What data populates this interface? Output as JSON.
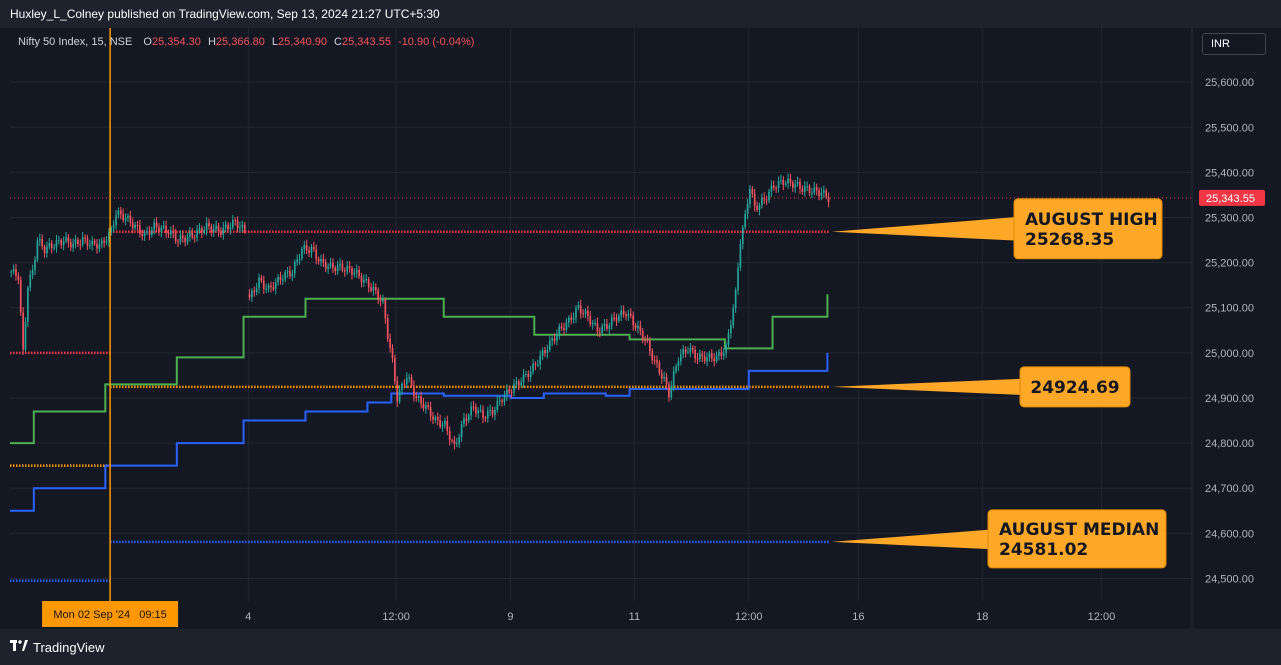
{
  "publisher": "Huxley_L_Colney published on TradingView.com, Sep 13, 2024 21:27 UTC+5:30",
  "brand": {
    "logo_icon": "tradingview-logo-icon",
    "label": "TradingView"
  },
  "legend": {
    "symbol": "Nifty 50 Index, 15, NSE",
    "open_label": "O",
    "open": "25,354.30",
    "high_label": "H",
    "high": "25,366.80",
    "low_label": "L",
    "low": "25,340.90",
    "close_label": "C",
    "close": "25,343.55",
    "change": "-10.90 (-0.04%)"
  },
  "currency": "INR",
  "colors": {
    "up": "#26a69a",
    "down": "#f7525f",
    "green_line": "#4caf50",
    "blue_line": "#2962ff",
    "orange": "#ff9800",
    "red_dotted": "#f23645",
    "callout_bg": "#ffa726"
  },
  "chart_data": {
    "type": "candlestick",
    "symbol": "Nifty 50 Index",
    "interval": "15",
    "exchange": "NSE",
    "y_axis": {
      "min": 24450,
      "max": 25720,
      "ticks": [
        24500,
        24600,
        24700,
        24800,
        24900,
        25000,
        25100,
        25200,
        25300,
        25400,
        25500,
        25600
      ],
      "tick_labels": [
        "24,500.00",
        "24,600.00",
        "24,700.00",
        "24,800.00",
        "24,900.00",
        "25,000.00",
        "25,100.00",
        "25,200.00",
        "25,300.00",
        "25,400.00",
        "25,500.00",
        "25,600.00"
      ]
    },
    "x_axis": {
      "labels": [
        "4",
        "12:00",
        "9",
        "11",
        "12:00",
        "16",
        "18",
        "12:00"
      ],
      "label_bars": [
        100,
        162,
        210,
        262,
        310,
        356,
        408,
        458
      ],
      "bars_total": 496
    },
    "last_price": {
      "value": 25343.55,
      "label": "25,343.55"
    },
    "crosshair": {
      "bar": 42,
      "label": "Mon 02 Sep '24   09:15"
    },
    "price_path": [
      [
        0,
        25180
      ],
      [
        3,
        25170
      ],
      [
        5,
        25000
      ],
      [
        7,
        25150
      ],
      [
        9,
        25180
      ],
      [
        11,
        25250
      ],
      [
        14,
        25230
      ],
      [
        18,
        25240
      ],
      [
        22,
        25250
      ],
      [
        26,
        25240
      ],
      [
        30,
        25250
      ],
      [
        34,
        25240
      ],
      [
        38,
        25240
      ],
      [
        42,
        25270
      ],
      [
        44,
        25310
      ],
      [
        48,
        25300
      ],
      [
        52,
        25280
      ],
      [
        56,
        25260
      ],
      [
        60,
        25280
      ],
      [
        66,
        25270
      ],
      [
        70,
        25250
      ],
      [
        76,
        25260
      ],
      [
        82,
        25280
      ],
      [
        88,
        25270
      ],
      [
        94,
        25290
      ],
      [
        98,
        25270
      ],
      [
        100,
        25120
      ],
      [
        104,
        25160
      ],
      [
        108,
        25140
      ],
      [
        114,
        25170
      ],
      [
        118,
        25180
      ],
      [
        122,
        25230
      ],
      [
        126,
        25230
      ],
      [
        130,
        25200
      ],
      [
        134,
        25190
      ],
      [
        138,
        25190
      ],
      [
        144,
        25180
      ],
      [
        148,
        25160
      ],
      [
        152,
        25140
      ],
      [
        156,
        25110
      ],
      [
        158,
        25040
      ],
      [
        160,
        24980
      ],
      [
        162,
        24900
      ],
      [
        166,
        24950
      ],
      [
        170,
        24900
      ],
      [
        174,
        24880
      ],
      [
        178,
        24850
      ],
      [
        182,
        24840
      ],
      [
        186,
        24790
      ],
      [
        190,
        24850
      ],
      [
        194,
        24880
      ],
      [
        198,
        24860
      ],
      [
        202,
        24870
      ],
      [
        206,
        24900
      ],
      [
        210,
        24920
      ],
      [
        214,
        24940
      ],
      [
        218,
        24960
      ],
      [
        222,
        24990
      ],
      [
        226,
        25020
      ],
      [
        230,
        25050
      ],
      [
        234,
        25070
      ],
      [
        238,
        25100
      ],
      [
        242,
        25080
      ],
      [
        246,
        25050
      ],
      [
        250,
        25060
      ],
      [
        254,
        25080
      ],
      [
        258,
        25090
      ],
      [
        262,
        25060
      ],
      [
        266,
        25030
      ],
      [
        270,
        24980
      ],
      [
        274,
        24940
      ],
      [
        276,
        24910
      ],
      [
        280,
        24990
      ],
      [
        284,
        25010
      ],
      [
        288,
        24990
      ],
      [
        292,
        24990
      ],
      [
        296,
        24990
      ],
      [
        300,
        25010
      ],
      [
        304,
        25130
      ],
      [
        306,
        25250
      ],
      [
        308,
        25300
      ],
      [
        310,
        25370
      ],
      [
        312,
        25320
      ],
      [
        316,
        25340
      ],
      [
        320,
        25370
      ],
      [
        324,
        25380
      ],
      [
        328,
        25375
      ],
      [
        332,
        25365
      ],
      [
        336,
        25360
      ],
      [
        340,
        25355
      ],
      [
        343,
        25343
      ]
    ],
    "series": [
      {
        "name": "",
        "color": "#4caf50",
        "steps": [
          [
            0,
            24800
          ],
          [
            10,
            24870
          ],
          [
            40,
            24930
          ],
          [
            70,
            24990
          ],
          [
            98,
            25080
          ],
          [
            124,
            25120
          ],
          [
            182,
            25080
          ],
          [
            220,
            25040
          ],
          [
            250,
            25040
          ],
          [
            260,
            25030
          ],
          [
            300,
            25010
          ],
          [
            320,
            25080
          ],
          [
            340,
            25080
          ],
          [
            343,
            25130
          ]
        ]
      },
      {
        "name": "",
        "color": "#2962ff",
        "steps": [
          [
            0,
            24650
          ],
          [
            10,
            24700
          ],
          [
            40,
            24750
          ],
          [
            70,
            24800
          ],
          [
            98,
            24850
          ],
          [
            124,
            24870
          ],
          [
            150,
            24890
          ],
          [
            160,
            24910
          ],
          [
            182,
            24905
          ],
          [
            210,
            24900
          ],
          [
            224,
            24910
          ],
          [
            250,
            24905
          ],
          [
            260,
            24920
          ],
          [
            310,
            24960
          ],
          [
            340,
            24960
          ],
          [
            343,
            25000
          ]
        ]
      }
    ],
    "levels": [
      {
        "name": "",
        "value": 25000,
        "color": "#f23645",
        "from_bar": 0,
        "to_bar": 42
      },
      {
        "name": "august-high",
        "value": 25268.35,
        "color": "#f23645",
        "from_bar": 42,
        "to_bar": 344
      },
      {
        "name": "",
        "value": 24924.69,
        "color": "#ff9800",
        "from_bar": 42,
        "to_bar": 344
      },
      {
        "name": "",
        "value": 24750,
        "color": "#ff9800",
        "from_bar": 0,
        "to_bar": 42
      },
      {
        "name": "august-median",
        "value": 24581.02,
        "color": "#2962ff",
        "from_bar": 42,
        "to_bar": 344
      },
      {
        "name": "",
        "value": 24495,
        "color": "#2962ff",
        "from_bar": 0,
        "to_bar": 42
      }
    ],
    "annotations": [
      {
        "name": "august-high-callout",
        "line1": "AUGUST HIGH",
        "line2": "25268.35",
        "anchor_bar": 344,
        "anchor_value": 25268.35
      },
      {
        "name": "level-callout",
        "line1": "24924.69",
        "line2": "",
        "anchor_bar": 344,
        "anchor_value": 24924.69
      },
      {
        "name": "august-median-callout",
        "line1": "AUGUST MEDIAN",
        "line2": "24581.02",
        "anchor_bar": 344,
        "anchor_value": 24581.02
      }
    ]
  }
}
